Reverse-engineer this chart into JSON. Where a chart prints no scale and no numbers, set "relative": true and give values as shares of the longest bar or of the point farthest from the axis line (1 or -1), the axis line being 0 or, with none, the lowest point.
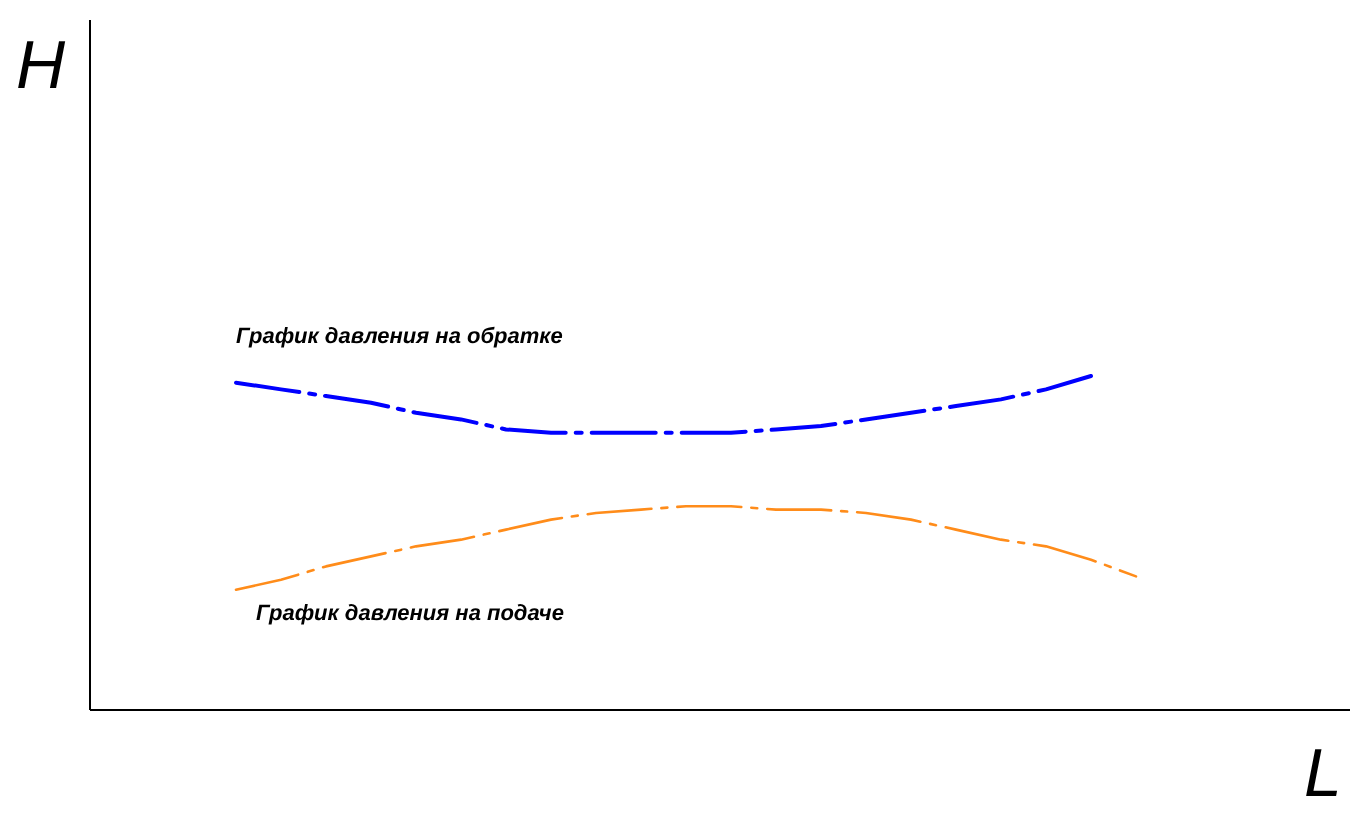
{
  "chart_data": {
    "type": "line",
    "xlabel": "L",
    "ylabel": "H",
    "relative": true,
    "line_style": "dashed",
    "categories": [
      null,
      null,
      null,
      null,
      null,
      null,
      null,
      null,
      null,
      null,
      null,
      null,
      null,
      null,
      null,
      null,
      null,
      null,
      null,
      null,
      null
    ],
    "series": [
      {
        "name": "График давления на обратке",
        "color": "#0000ff",
        "values": [
          0.98,
          0.96,
          0.94,
          0.92,
          0.89,
          0.87,
          0.84,
          0.83,
          0.83,
          0.83,
          0.83,
          0.83,
          0.84,
          0.85,
          0.87,
          0.89,
          0.91,
          0.93,
          0.96,
          1,
          null
        ]
      },
      {
        "name": "График давления на подаче",
        "color": "#ff8c1a",
        "values": [
          0.36,
          0.39,
          0.43,
          0.46,
          0.49,
          0.51,
          0.54,
          0.57,
          0.59,
          0.6,
          0.61,
          0.61,
          0.6,
          0.6,
          0.59,
          0.57,
          0.54,
          0.51,
          0.49,
          0.45,
          0.4
        ]
      }
    ]
  }
}
